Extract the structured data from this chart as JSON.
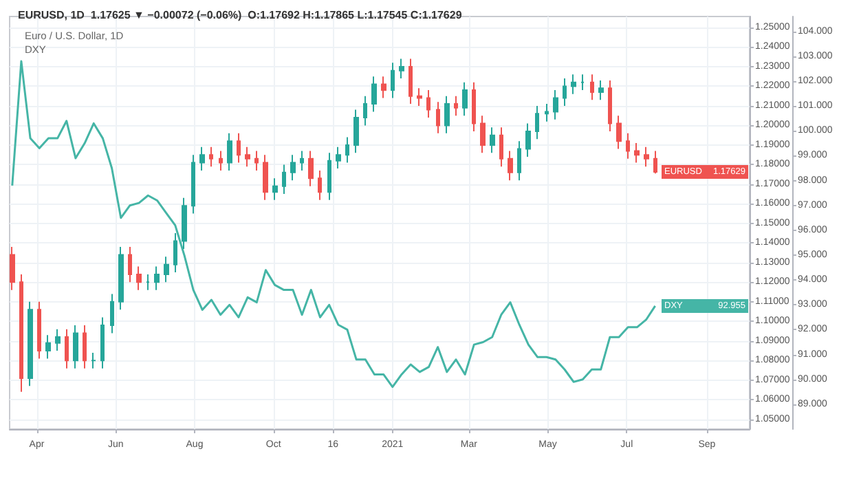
{
  "chart_data": {
    "type": "candlestick",
    "title": "EURUSD, 1D  1.17625 ▼ −0.00072 (−0.06%)  O:1.17692 H:1.17865 L:1.17545 C:1.17629",
    "subtitle": "Euro / U.S. Dollar, 1D",
    "annotations": [
      "DXY",
      "1.17629",
      "92.955"
    ],
    "x": [
      "2020-03-13",
      "2020-03-20",
      "2020-03-27",
      "2020-04-03",
      "2020-04-10",
      "2020-04-17",
      "2020-04-24",
      "2020-05-01",
      "2020-05-08",
      "2020-05-15",
      "2020-05-22",
      "2020-05-29",
      "2020-06-05",
      "2020-06-12",
      "2020-06-19",
      "2020-06-26",
      "2020-07-03",
      "2020-07-10",
      "2020-07-17",
      "2020-07-24",
      "2020-07-31",
      "2020-08-07",
      "2020-08-14",
      "2020-08-21",
      "2020-08-28",
      "2020-09-04",
      "2020-09-11",
      "2020-09-18",
      "2020-09-25",
      "2020-10-02",
      "2020-10-09",
      "2020-10-16",
      "2020-10-23",
      "2020-10-30",
      "2020-11-06",
      "2020-11-13",
      "2020-11-20",
      "2020-11-27",
      "2020-12-04",
      "2020-12-11",
      "2020-12-18",
      "2020-12-25",
      "2021-01-01",
      "2021-01-08",
      "2021-01-15",
      "2021-01-22",
      "2021-01-29",
      "2021-02-05",
      "2021-02-12",
      "2021-02-19",
      "2021-02-26",
      "2021-03-05",
      "2021-03-12",
      "2021-03-19",
      "2021-03-26",
      "2021-04-02",
      "2021-04-09",
      "2021-04-16",
      "2021-04-23",
      "2021-04-30",
      "2021-05-07",
      "2021-05-14",
      "2021-05-21",
      "2021-05-28",
      "2021-06-04",
      "2021-06-11",
      "2021-06-18",
      "2021-06-25",
      "2021-07-02",
      "2021-07-09",
      "2021-07-16",
      "2021-07-23"
    ],
    "series": [
      {
        "name": "EURUSD",
        "ohlc": [
          [
            1.134,
            1.138,
            1.116,
            1.12
          ],
          [
            1.12,
            1.124,
            1.064,
            1.071
          ],
          [
            1.071,
            1.11,
            1.067,
            1.106
          ],
          [
            1.106,
            1.11,
            1.081,
            1.085
          ],
          [
            1.085,
            1.093,
            1.081,
            1.089
          ],
          [
            1.089,
            1.096,
            1.085,
            1.092
          ],
          [
            1.092,
            1.096,
            1.076,
            1.08
          ],
          [
            1.08,
            1.098,
            1.076,
            1.094
          ],
          [
            1.094,
            1.098,
            1.076,
            1.08
          ],
          [
            1.08,
            1.084,
            1.076,
            1.08
          ],
          [
            1.08,
            1.102,
            1.076,
            1.098
          ],
          [
            1.098,
            1.114,
            1.094,
            1.11
          ],
          [
            1.11,
            1.138,
            1.106,
            1.134
          ],
          [
            1.134,
            1.138,
            1.12,
            1.124
          ],
          [
            1.124,
            1.128,
            1.116,
            1.12
          ],
          [
            1.12,
            1.124,
            1.116,
            1.12
          ],
          [
            1.12,
            1.128,
            1.116,
            1.124
          ],
          [
            1.124,
            1.133,
            1.12,
            1.129
          ],
          [
            1.129,
            1.145,
            1.125,
            1.141
          ],
          [
            1.141,
            1.163,
            1.137,
            1.159
          ],
          [
            1.159,
            1.185,
            1.155,
            1.181
          ],
          [
            1.181,
            1.189,
            1.177,
            1.185
          ],
          [
            1.185,
            1.189,
            1.179,
            1.183
          ],
          [
            1.183,
            1.187,
            1.177,
            1.181
          ],
          [
            1.181,
            1.196,
            1.177,
            1.192
          ],
          [
            1.192,
            1.196,
            1.181,
            1.185
          ],
          [
            1.185,
            1.189,
            1.179,
            1.183
          ],
          [
            1.183,
            1.187,
            1.177,
            1.181
          ],
          [
            1.181,
            1.185,
            1.162,
            1.166
          ],
          [
            1.166,
            1.173,
            1.162,
            1.169
          ],
          [
            1.169,
            1.18,
            1.165,
            1.176
          ],
          [
            1.176,
            1.185,
            1.172,
            1.181
          ],
          [
            1.181,
            1.187,
            1.177,
            1.183
          ],
          [
            1.183,
            1.187,
            1.169,
            1.173
          ],
          [
            1.173,
            1.177,
            1.162,
            1.166
          ],
          [
            1.166,
            1.186,
            1.162,
            1.182
          ],
          [
            1.182,
            1.189,
            1.178,
            1.185
          ],
          [
            1.185,
            1.194,
            1.181,
            1.19
          ],
          [
            1.19,
            1.208,
            1.186,
            1.204
          ],
          [
            1.204,
            1.215,
            1.2,
            1.211
          ],
          [
            1.211,
            1.225,
            1.207,
            1.221
          ],
          [
            1.221,
            1.225,
            1.214,
            1.218
          ],
          [
            1.218,
            1.232,
            1.214,
            1.228
          ],
          [
            1.228,
            1.234,
            1.224,
            1.23
          ],
          [
            1.23,
            1.234,
            1.211,
            1.215
          ],
          [
            1.215,
            1.219,
            1.21,
            1.214
          ],
          [
            1.214,
            1.218,
            1.204,
            1.208
          ],
          [
            1.208,
            1.212,
            1.196,
            1.2
          ],
          [
            1.2,
            1.215,
            1.196,
            1.211
          ],
          [
            1.211,
            1.215,
            1.205,
            1.209
          ],
          [
            1.209,
            1.222,
            1.205,
            1.218
          ],
          [
            1.218,
            1.222,
            1.197,
            1.201
          ],
          [
            1.201,
            1.205,
            1.186,
            1.19
          ],
          [
            1.19,
            1.199,
            1.186,
            1.195
          ],
          [
            1.195,
            1.199,
            1.179,
            1.183
          ],
          [
            1.183,
            1.187,
            1.172,
            1.176
          ],
          [
            1.176,
            1.192,
            1.172,
            1.188
          ],
          [
            1.188,
            1.201,
            1.184,
            1.197
          ],
          [
            1.197,
            1.21,
            1.193,
            1.206
          ],
          [
            1.206,
            1.211,
            1.202,
            1.207
          ],
          [
            1.207,
            1.218,
            1.203,
            1.214
          ],
          [
            1.214,
            1.224,
            1.21,
            1.22
          ],
          [
            1.22,
            1.226,
            1.216,
            1.222
          ],
          [
            1.222,
            1.226,
            1.218,
            1.222
          ],
          [
            1.222,
            1.226,
            1.213,
            1.217
          ],
          [
            1.217,
            1.223,
            1.213,
            1.219
          ],
          [
            1.219,
            1.223,
            1.197,
            1.201
          ],
          [
            1.201,
            1.205,
            1.188,
            1.192
          ],
          [
            1.192,
            1.196,
            1.183,
            1.187
          ],
          [
            1.187,
            1.191,
            1.181,
            1.185
          ],
          [
            1.185,
            1.189,
            1.179,
            1.183
          ],
          [
            1.183,
            1.187,
            1.17545,
            1.17629
          ]
        ],
        "colors": [
          "#ef5350",
          "#ef5350",
          "#26a69a",
          "#ef5350",
          "#26a69a",
          "#26a69a",
          "#ef5350",
          "#26a69a",
          "#ef5350",
          "#26a69a",
          "#26a69a",
          "#26a69a",
          "#26a69a",
          "#ef5350",
          "#ef5350",
          "#26a69a",
          "#26a69a",
          "#26a69a",
          "#26a69a",
          "#26a69a",
          "#26a69a",
          "#26a69a",
          "#ef5350",
          "#ef5350",
          "#26a69a",
          "#ef5350",
          "#ef5350",
          "#ef5350",
          "#ef5350",
          "#26a69a",
          "#26a69a",
          "#26a69a",
          "#26a69a",
          "#ef5350",
          "#ef5350",
          "#26a69a",
          "#26a69a",
          "#26a69a",
          "#26a69a",
          "#26a69a",
          "#26a69a",
          "#ef5350",
          "#26a69a",
          "#26a69a",
          "#ef5350",
          "#ef5350",
          "#ef5350",
          "#ef5350",
          "#26a69a",
          "#ef5350",
          "#26a69a",
          "#ef5350",
          "#ef5350",
          "#26a69a",
          "#ef5350",
          "#ef5350",
          "#26a69a",
          "#26a69a",
          "#26a69a",
          "#26a69a",
          "#26a69a",
          "#26a69a",
          "#26a69a",
          "#26a69a",
          "#ef5350",
          "#26a69a",
          "#ef5350",
          "#ef5350",
          "#ef5350",
          "#ef5350",
          "#ef5350",
          "#ef5350"
        ]
      },
      {
        "name": "DXY",
        "type": "line",
        "axis": "y2",
        "color": "#45b5a6",
        "values": [
          97.8,
          102.8,
          99.7,
          99.3,
          99.7,
          99.7,
          100.4,
          98.9,
          99.5,
          100.3,
          99.7,
          98.5,
          96.5,
          97.0,
          97.1,
          97.4,
          97.2,
          96.7,
          96.2,
          95.0,
          93.6,
          92.8,
          93.2,
          92.6,
          93.0,
          92.5,
          93.3,
          93.1,
          94.4,
          93.8,
          93.6,
          93.6,
          92.6,
          93.6,
          92.5,
          93.0,
          92.2,
          92.0,
          90.8,
          90.8,
          90.2,
          90.2,
          89.7,
          90.2,
          90.6,
          90.3,
          90.5,
          91.3,
          90.3,
          90.8,
          90.2,
          91.4,
          91.5,
          91.7,
          92.6,
          93.1,
          92.2,
          91.4,
          90.9,
          90.9,
          90.8,
          90.4,
          89.9,
          90.0,
          90.4,
          90.4,
          91.7,
          91.7,
          92.1,
          92.1,
          92.4,
          92.955
        ]
      }
    ],
    "marker": "none",
    "grid": true,
    "xlim": [
      "2020-03-11",
      "2021-10-04"
    ],
    "xticks": [
      {
        "value": "2020-04-01",
        "label": "Apr"
      },
      {
        "value": "2020-06-01",
        "label": "Jun"
      },
      {
        "value": "2020-08-01",
        "label": "Aug"
      },
      {
        "value": "2020-10-01",
        "label": "Oct"
      },
      {
        "value": "2020-11-16",
        "label": "16"
      },
      {
        "value": "2021-01-01",
        "label": "2021"
      },
      {
        "value": "2021-03-01",
        "label": "Mar"
      },
      {
        "value": "2021-05-01",
        "label": "May"
      },
      {
        "value": "2021-07-01",
        "label": "Jul"
      },
      {
        "value": "2021-09-01",
        "label": "Sep"
      }
    ],
    "ylim": [
      1.045,
      1.2556
    ],
    "yticks": [
      {
        "value": 1.05,
        "label": "1.05000"
      },
      {
        "value": 1.06,
        "label": "1.06000"
      },
      {
        "value": 1.07,
        "label": "1.07000"
      },
      {
        "value": 1.08,
        "label": "1.08000"
      },
      {
        "value": 1.09,
        "label": "1.09000"
      },
      {
        "value": 1.1,
        "label": "1.10000"
      },
      {
        "value": 1.11,
        "label": "1.11000"
      },
      {
        "value": 1.12,
        "label": "1.12000"
      },
      {
        "value": 1.13,
        "label": "1.13000"
      },
      {
        "value": 1.14,
        "label": "1.14000"
      },
      {
        "value": 1.15,
        "label": "1.15000"
      },
      {
        "value": 1.16,
        "label": "1.16000"
      },
      {
        "value": 1.17,
        "label": "1.17000"
      },
      {
        "value": 1.18,
        "label": "1.18000"
      },
      {
        "value": 1.19,
        "label": "1.19000"
      },
      {
        "value": 1.2,
        "label": "1.20000"
      },
      {
        "value": 1.21,
        "label": "1.21000"
      },
      {
        "value": 1.22,
        "label": "1.22000"
      },
      {
        "value": 1.23,
        "label": "1.23000"
      },
      {
        "value": 1.24,
        "label": "1.24000"
      },
      {
        "value": 1.25,
        "label": "1.25000"
      }
    ],
    "y2lim": [
      88.0,
      104.6
    ],
    "y2ticks": [
      {
        "value": 89,
        "label": "89.000"
      },
      {
        "value": 90,
        "label": "90.000"
      },
      {
        "value": 91,
        "label": "91.000"
      },
      {
        "value": 92,
        "label": "92.000"
      },
      {
        "value": 93,
        "label": "93.000"
      },
      {
        "value": 94,
        "label": "94.000"
      },
      {
        "value": 95,
        "label": "95.000"
      },
      {
        "value": 96,
        "label": "96.000"
      },
      {
        "value": 97,
        "label": "97.000"
      },
      {
        "value": 98,
        "label": "98.000"
      },
      {
        "value": 99,
        "label": "99.000"
      },
      {
        "value": 100,
        "label": "100.000"
      },
      {
        "value": 101,
        "label": "101.000"
      },
      {
        "value": 102,
        "label": "102.000"
      },
      {
        "value": 103,
        "label": "103.000"
      },
      {
        "value": 104,
        "label": "104.000"
      }
    ]
  }
}
